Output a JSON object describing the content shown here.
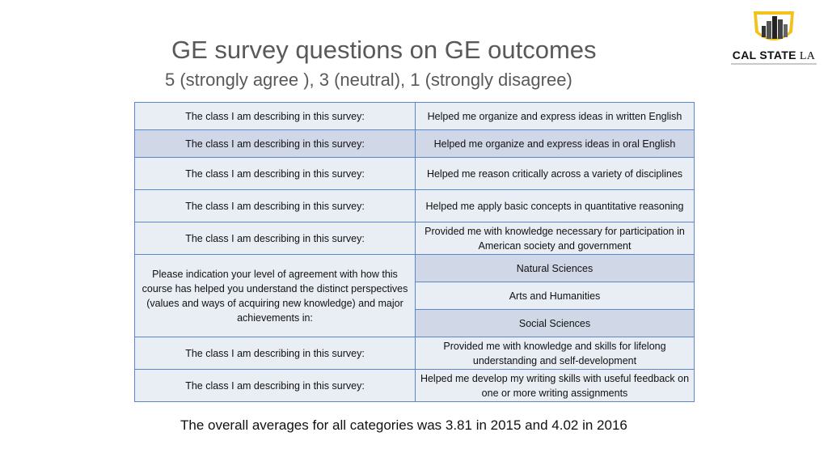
{
  "title": "GE survey questions on GE outcomes",
  "subtitle": "5 (strongly agree ), 3 (neutral), 1 (strongly disagree)",
  "logo": {
    "main": "CAL STATE",
    "suffix": "LA"
  },
  "table": {
    "rows": [
      {
        "left": "The class I am describing in this survey:",
        "right": "Helped me organize and express ideas in written English"
      },
      {
        "left": "The class I am describing in this survey:",
        "right": "Helped me organize and express ideas in oral English"
      },
      {
        "left": "The class I am describing in this survey:",
        "right": "Helped me reason critically across a variety of disciplines"
      },
      {
        "left": "The class I am describing in this survey:",
        "right": "Helped me apply basic concepts in quantitative reasoning"
      },
      {
        "left": "The class I am describing in this survey:",
        "right": "Provided me with knowledge necessary for participation in American society and government"
      },
      {
        "left": "Please indication your level of agreement with how this course has helped you understand the distinct perspectives (values and ways of acquiring new knowledge) and major achievements in:",
        "right": "Natural Sciences"
      },
      {
        "right": "Arts and Humanities"
      },
      {
        "right": "Social Sciences"
      },
      {
        "left": "The class I am describing in this survey:",
        "right": "Provided me with knowledge and skills for lifelong understanding and self-development"
      },
      {
        "left": "The class I am describing in this survey:",
        "right": "Helped me develop my writing skills with useful feedback on one or more writing assignments"
      }
    ]
  },
  "footer": "The overall averages for all categories was 3.81 in 2015 and 4.02 in 2016"
}
